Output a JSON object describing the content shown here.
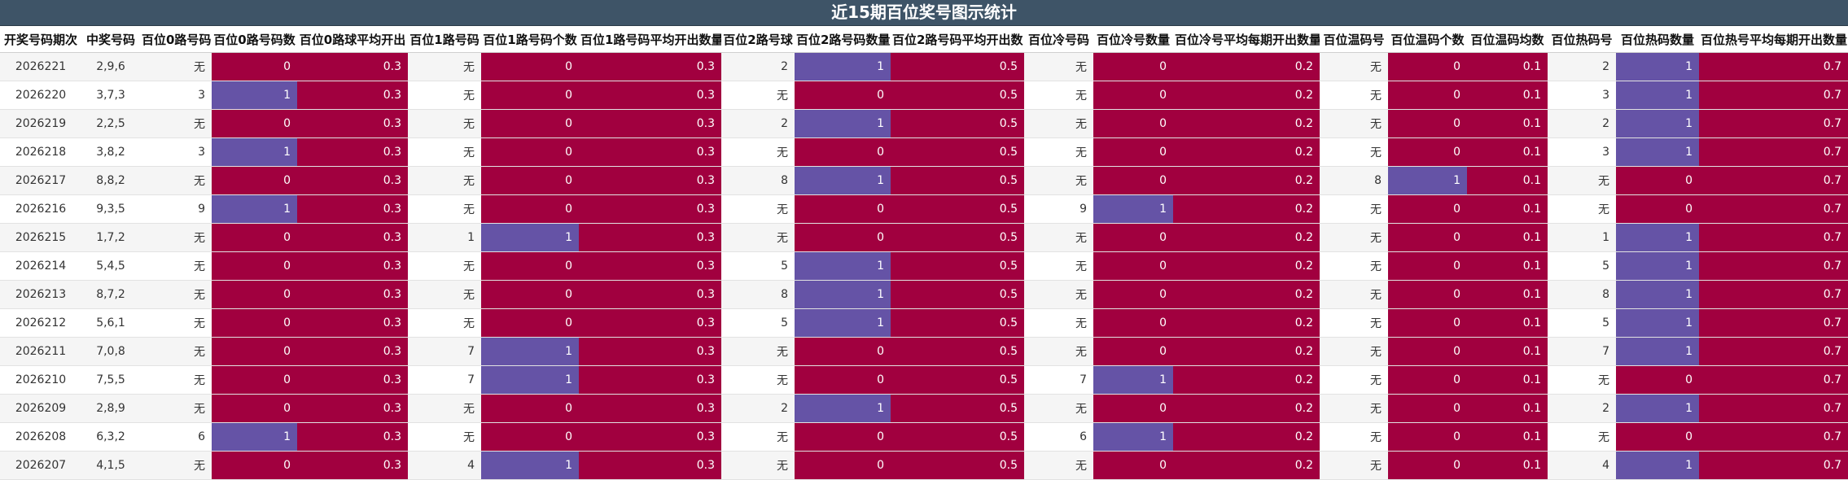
{
  "title": "近15期百位奖号图示统计",
  "colors": {
    "title_bg": "#3e5467",
    "zero": "#a1003f",
    "one": "#6553a6"
  },
  "chart_data": {
    "type": "table",
    "title": "近15期百位奖号图示统计",
    "columns": [
      "开奖号码期次",
      "中奖号码",
      "百位0路号码",
      "百位0路号码数",
      "百位0路球平均开出",
      "百位1路号码",
      "百位1路号码个数",
      "百位1路号码平均开出数量",
      "百位2路号球",
      "百位2路号码数量",
      "百位2路号码平均开出数",
      "百位冷号码",
      "百位冷号数量",
      "百位冷号平均每期开出数量",
      "百位温码号",
      "百位温码个数",
      "百位温码均数",
      "百位热码号",
      "百位热码数量",
      "百位热号平均每期开出数量"
    ],
    "rows": [
      [
        "2026221",
        "2,9,6",
        "无",
        "0",
        "0.3",
        "无",
        "0",
        "0.3",
        "2",
        "1",
        "0.5",
        "无",
        "0",
        "0.2",
        "无",
        "0",
        "0.1",
        "2",
        "1",
        "0.7"
      ],
      [
        "2026220",
        "3,7,3",
        "3",
        "1",
        "0.3",
        "无",
        "0",
        "0.3",
        "无",
        "0",
        "0.5",
        "无",
        "0",
        "0.2",
        "无",
        "0",
        "0.1",
        "3",
        "1",
        "0.7"
      ],
      [
        "2026219",
        "2,2,5",
        "无",
        "0",
        "0.3",
        "无",
        "0",
        "0.3",
        "2",
        "1",
        "0.5",
        "无",
        "0",
        "0.2",
        "无",
        "0",
        "0.1",
        "2",
        "1",
        "0.7"
      ],
      [
        "2026218",
        "3,8,2",
        "3",
        "1",
        "0.3",
        "无",
        "0",
        "0.3",
        "无",
        "0",
        "0.5",
        "无",
        "0",
        "0.2",
        "无",
        "0",
        "0.1",
        "3",
        "1",
        "0.7"
      ],
      [
        "2026217",
        "8,8,2",
        "无",
        "0",
        "0.3",
        "无",
        "0",
        "0.3",
        "8",
        "1",
        "0.5",
        "无",
        "0",
        "0.2",
        "8",
        "1",
        "0.1",
        "无",
        "0",
        "0.7"
      ],
      [
        "2026216",
        "9,3,5",
        "9",
        "1",
        "0.3",
        "无",
        "0",
        "0.3",
        "无",
        "0",
        "0.5",
        "9",
        "1",
        "0.2",
        "无",
        "0",
        "0.1",
        "无",
        "0",
        "0.7"
      ],
      [
        "2026215",
        "1,7,2",
        "无",
        "0",
        "0.3",
        "1",
        "1",
        "0.3",
        "无",
        "0",
        "0.5",
        "无",
        "0",
        "0.2",
        "无",
        "0",
        "0.1",
        "1",
        "1",
        "0.7"
      ],
      [
        "2026214",
        "5,4,5",
        "无",
        "0",
        "0.3",
        "无",
        "0",
        "0.3",
        "5",
        "1",
        "0.5",
        "无",
        "0",
        "0.2",
        "无",
        "0",
        "0.1",
        "5",
        "1",
        "0.7"
      ],
      [
        "2026213",
        "8,7,2",
        "无",
        "0",
        "0.3",
        "无",
        "0",
        "0.3",
        "8",
        "1",
        "0.5",
        "无",
        "0",
        "0.2",
        "无",
        "0",
        "0.1",
        "8",
        "1",
        "0.7"
      ],
      [
        "2026212",
        "5,6,1",
        "无",
        "0",
        "0.3",
        "无",
        "0",
        "0.3",
        "5",
        "1",
        "0.5",
        "无",
        "0",
        "0.2",
        "无",
        "0",
        "0.1",
        "5",
        "1",
        "0.7"
      ],
      [
        "2026211",
        "7,0,8",
        "无",
        "0",
        "0.3",
        "7",
        "1",
        "0.3",
        "无",
        "0",
        "0.5",
        "无",
        "0",
        "0.2",
        "无",
        "0",
        "0.1",
        "7",
        "1",
        "0.7"
      ],
      [
        "2026210",
        "7,5,5",
        "无",
        "0",
        "0.3",
        "7",
        "1",
        "0.3",
        "无",
        "0",
        "0.5",
        "7",
        "1",
        "0.2",
        "无",
        "0",
        "0.1",
        "无",
        "0",
        "0.7"
      ],
      [
        "2026209",
        "2,8,9",
        "无",
        "0",
        "0.3",
        "无",
        "0",
        "0.3",
        "2",
        "1",
        "0.5",
        "无",
        "0",
        "0.2",
        "无",
        "0",
        "0.1",
        "2",
        "1",
        "0.7"
      ],
      [
        "2026208",
        "6,3,2",
        "6",
        "1",
        "0.3",
        "无",
        "0",
        "0.3",
        "无",
        "0",
        "0.5",
        "6",
        "1",
        "0.2",
        "无",
        "0",
        "0.1",
        "无",
        "0",
        "0.7"
      ],
      [
        "2026207",
        "4,1,5",
        "无",
        "0",
        "0.3",
        "4",
        "1",
        "0.3",
        "无",
        "0",
        "0.5",
        "无",
        "0",
        "0.2",
        "无",
        "0",
        "0.1",
        "4",
        "1",
        "0.7"
      ]
    ]
  }
}
